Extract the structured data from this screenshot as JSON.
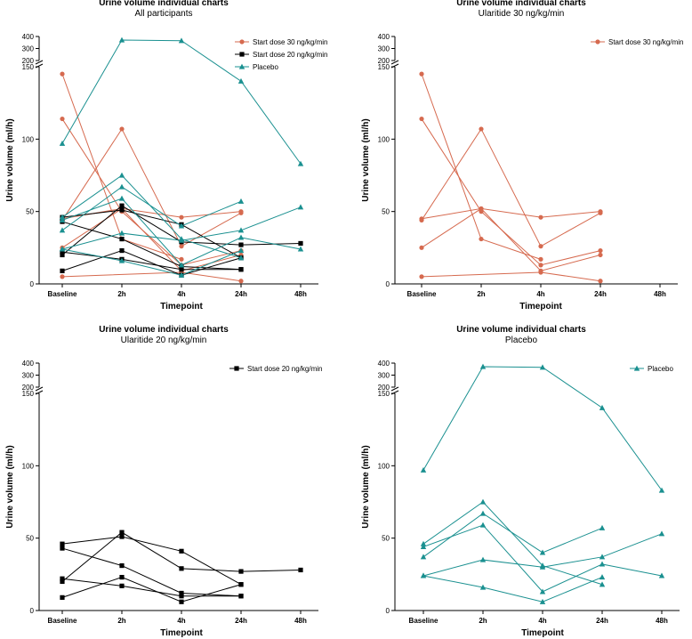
{
  "colors": {
    "orange": "#d66a4f",
    "black": "#000000",
    "teal": "#1a9090"
  },
  "chart_data": [
    {
      "type": "line",
      "title": "Urine volume individual charts",
      "subtitle": "All participants",
      "xlabel": "Timepoint",
      "ylabel": "Urine volume (ml/h)",
      "categories": [
        "Baseline",
        "2h",
        "4h",
        "24h",
        "48h"
      ],
      "ylim": [
        0,
        400
      ],
      "y_break": [
        150,
        200
      ],
      "yticks_lower": [
        "0",
        "50",
        "100",
        "150"
      ],
      "yticks_upper": [
        "200",
        "300",
        "400"
      ],
      "legend": [
        {
          "label": "Start dose 30 ng/kg/min",
          "color": "#d66a4f",
          "marker": "circle"
        },
        {
          "label": "Start dose 20 ng/kg/min",
          "color": "#000000",
          "marker": "square"
        },
        {
          "label": "Placebo",
          "color": "#1a9090",
          "marker": "triangle"
        }
      ],
      "series": [
        {
          "group": "30",
          "values": [
            145,
            31,
            17,
            null,
            null
          ]
        },
        {
          "group": "30",
          "values": [
            114,
            50,
            13,
            23,
            null
          ]
        },
        {
          "group": "30",
          "values": [
            44,
            107,
            26,
            49,
            null
          ]
        },
        {
          "group": "30",
          "values": [
            25,
            52,
            46,
            50,
            null
          ]
        },
        {
          "group": "30",
          "values": [
            45,
            52,
            9,
            20,
            null
          ]
        },
        {
          "group": "30",
          "values": [
            5,
            null,
            8,
            2,
            null
          ]
        },
        {
          "group": "20",
          "values": [
            46,
            51,
            41,
            18,
            null
          ]
        },
        {
          "group": "20",
          "values": [
            43,
            31,
            12,
            10,
            null
          ]
        },
        {
          "group": "20",
          "values": [
            22,
            17,
            10,
            10,
            null
          ]
        },
        {
          "group": "20",
          "values": [
            20,
            54,
            29,
            27,
            28
          ]
        },
        {
          "group": "20",
          "values": [
            9,
            23,
            6,
            18,
            null
          ]
        },
        {
          "group": "placebo",
          "values": [
            97,
            370,
            365,
            140,
            83
          ]
        },
        {
          "group": "placebo",
          "values": [
            46,
            75,
            31,
            18,
            null
          ]
        },
        {
          "group": "placebo",
          "values": [
            37,
            67,
            40,
            57,
            null
          ]
        },
        {
          "group": "placebo",
          "values": [
            24,
            35,
            30,
            37,
            53
          ]
        },
        {
          "group": "placebo",
          "values": [
            44,
            59,
            13,
            32,
            24
          ]
        },
        {
          "group": "placebo",
          "values": [
            24,
            16,
            6,
            23,
            null
          ]
        }
      ]
    },
    {
      "type": "line",
      "title": "Urine volume individual charts",
      "subtitle": "Ularitide 30 ng/kg/min",
      "xlabel": "Timepoint",
      "ylabel": "Urine volume (ml/h)",
      "categories": [
        "Baseline",
        "2h",
        "4h",
        "24h",
        "48h"
      ],
      "ylim": [
        0,
        400
      ],
      "y_break": [
        150,
        200
      ],
      "yticks_lower": [
        "0",
        "50",
        "100",
        "150"
      ],
      "yticks_upper": [
        "200",
        "300",
        "400"
      ],
      "legend": [
        {
          "label": "Start dose 30 ng/kg/min",
          "color": "#d66a4f",
          "marker": "circle"
        }
      ],
      "series": [
        {
          "group": "30",
          "values": [
            145,
            31,
            17,
            null,
            null
          ]
        },
        {
          "group": "30",
          "values": [
            114,
            50,
            13,
            23,
            null
          ]
        },
        {
          "group": "30",
          "values": [
            44,
            107,
            26,
            49,
            null
          ]
        },
        {
          "group": "30",
          "values": [
            25,
            52,
            46,
            50,
            null
          ]
        },
        {
          "group": "30",
          "values": [
            45,
            52,
            9,
            20,
            null
          ]
        },
        {
          "group": "30",
          "values": [
            5,
            null,
            8,
            2,
            null
          ]
        }
      ]
    },
    {
      "type": "line",
      "title": "Urine volume individual charts",
      "subtitle": "Ularitide 20 ng/kg/min",
      "xlabel": "Timepoint",
      "ylabel": "Urine volume (ml/h)",
      "categories": [
        "Baseline",
        "2h",
        "4h",
        "24h",
        "48h"
      ],
      "ylim": [
        0,
        400
      ],
      "y_break": [
        150,
        200
      ],
      "yticks_lower": [
        "0",
        "50",
        "100",
        "150"
      ],
      "yticks_upper": [
        "200",
        "300",
        "400"
      ],
      "legend": [
        {
          "label": "Start dose 20 ng/kg/min",
          "color": "#000000",
          "marker": "square"
        }
      ],
      "series": [
        {
          "group": "20",
          "values": [
            46,
            51,
            41,
            18,
            null
          ]
        },
        {
          "group": "20",
          "values": [
            43,
            31,
            12,
            10,
            null
          ]
        },
        {
          "group": "20",
          "values": [
            22,
            17,
            10,
            10,
            null
          ]
        },
        {
          "group": "20",
          "values": [
            20,
            54,
            29,
            27,
            28
          ]
        },
        {
          "group": "20",
          "values": [
            9,
            23,
            6,
            18,
            null
          ]
        }
      ]
    },
    {
      "type": "line",
      "title": "Urine volume individual charts",
      "subtitle": "Placebo",
      "xlabel": "Timepoint",
      "ylabel": "Urine volume (ml/h)",
      "categories": [
        "Baseline",
        "2h",
        "4h",
        "24h",
        "48h"
      ],
      "ylim": [
        0,
        400
      ],
      "y_break": [
        150,
        200
      ],
      "yticks_lower": [
        "0",
        "50",
        "100",
        "150"
      ],
      "yticks_upper": [
        "200",
        "300",
        "400"
      ],
      "legend": [
        {
          "label": "Placebo",
          "color": "#1a9090",
          "marker": "triangle"
        }
      ],
      "series": [
        {
          "group": "placebo",
          "values": [
            97,
            370,
            365,
            140,
            83
          ]
        },
        {
          "group": "placebo",
          "values": [
            46,
            75,
            31,
            18,
            null
          ]
        },
        {
          "group": "placebo",
          "values": [
            37,
            67,
            40,
            57,
            null
          ]
        },
        {
          "group": "placebo",
          "values": [
            24,
            35,
            30,
            37,
            53
          ]
        },
        {
          "group": "placebo",
          "values": [
            44,
            59,
            13,
            32,
            24
          ]
        },
        {
          "group": "placebo",
          "values": [
            24,
            16,
            6,
            23,
            null
          ]
        }
      ]
    }
  ]
}
